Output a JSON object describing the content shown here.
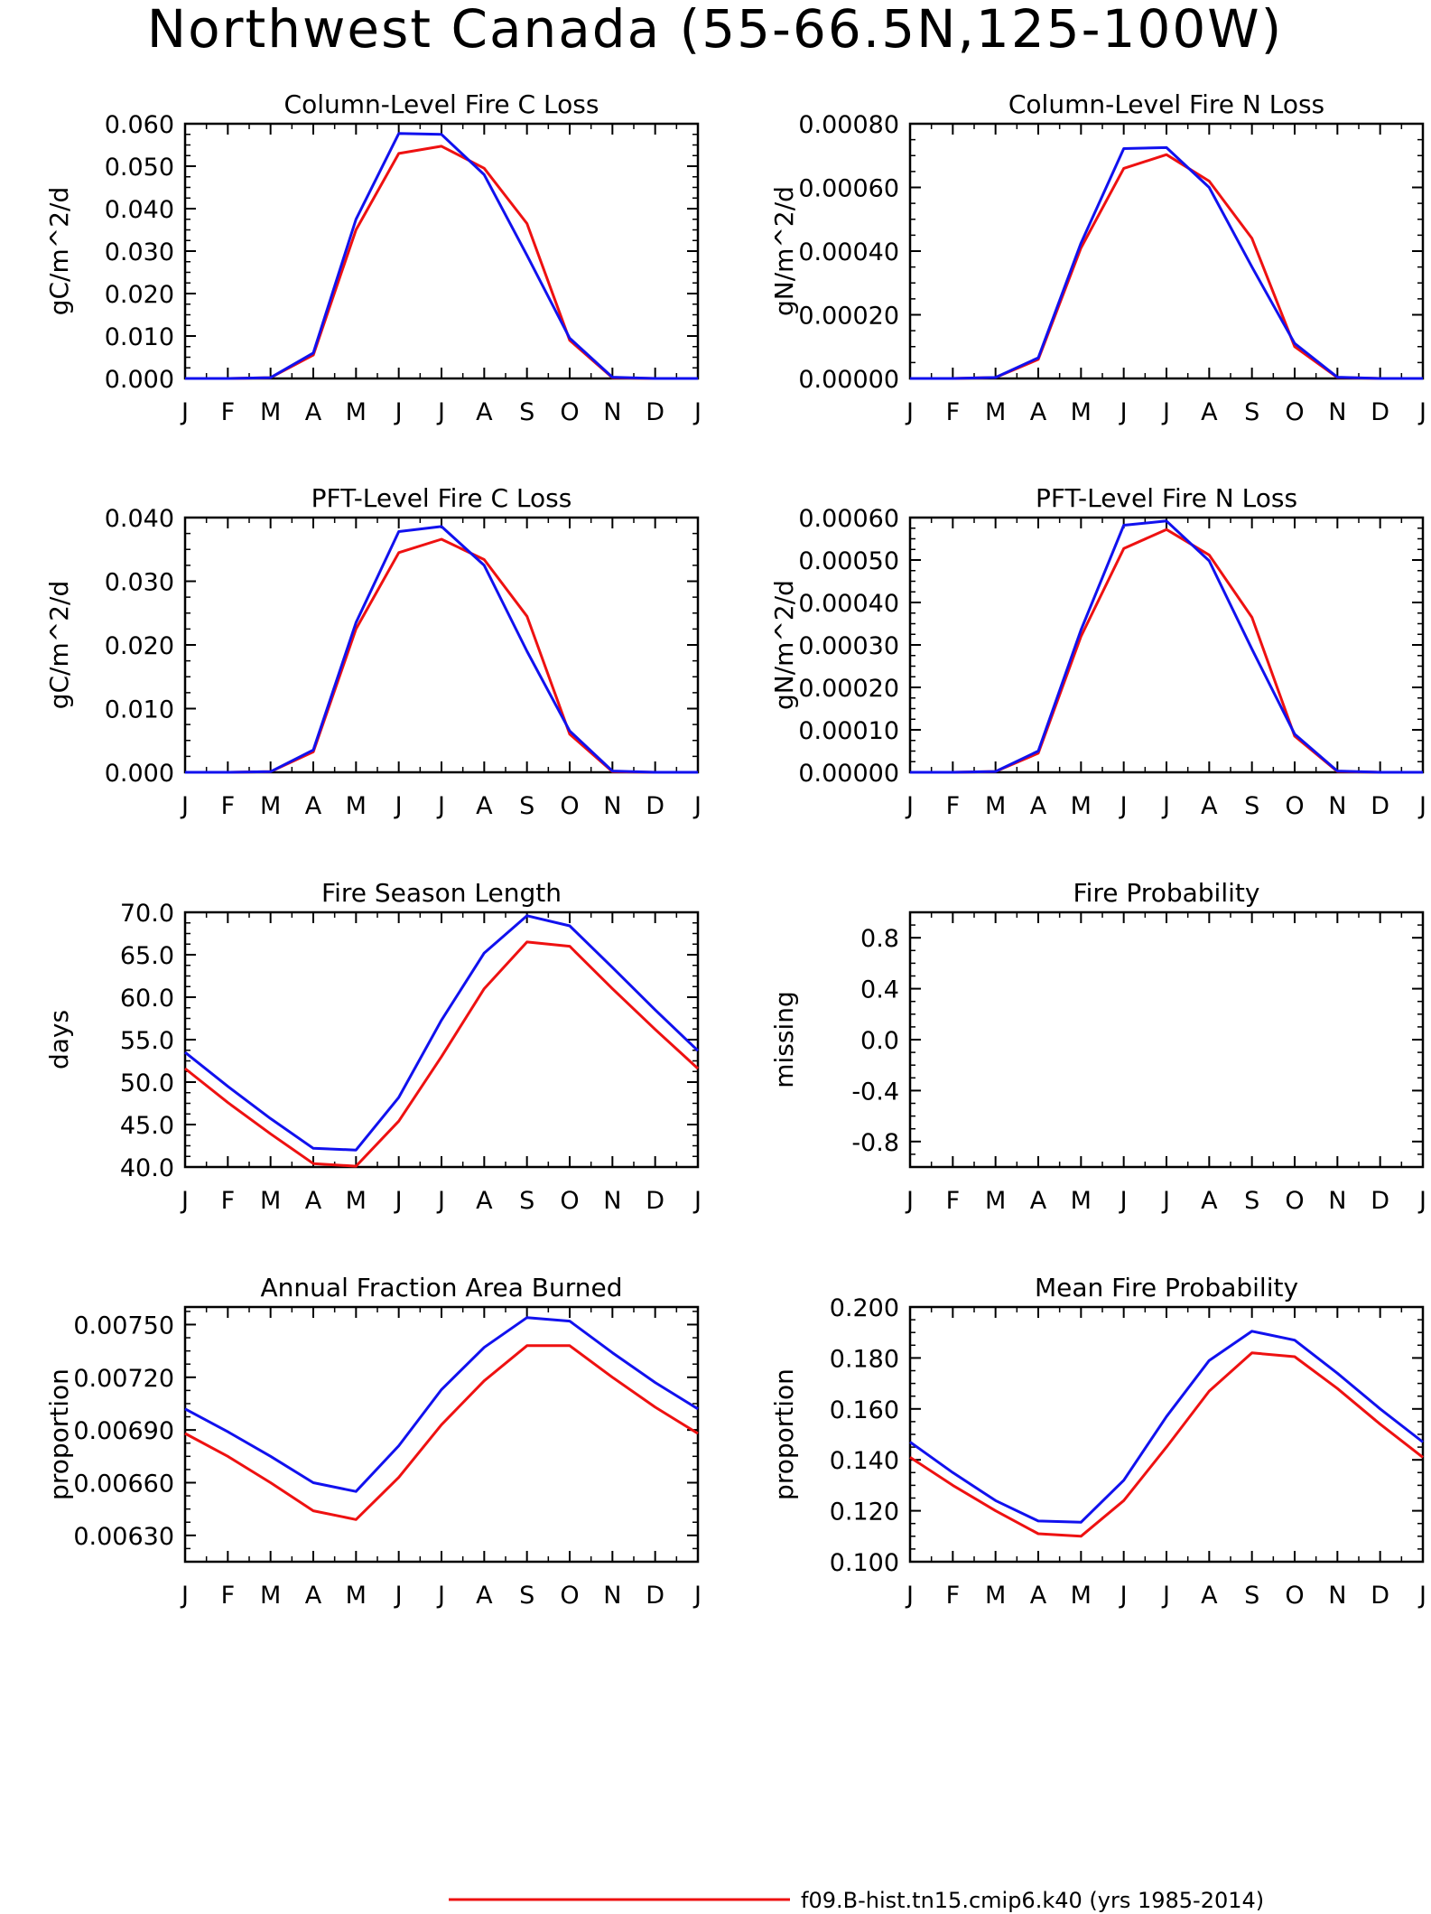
{
  "figure": {
    "title": "Northwest Canada (55-66.5N,125-100W)"
  },
  "colors": {
    "series_1": "#ee1111",
    "series_2": "#1111ee"
  },
  "legend": {
    "entries": [
      {
        "label": "f09.B-hist.tn15.cmip6.k40 (yrs 1985-2014)",
        "color": "#ee1111"
      }
    ]
  },
  "chart_data": [
    {
      "type": "line",
      "title": "Column-Level Fire C Loss",
      "ylabel": "gC/m^2/d",
      "xlabel": "",
      "categories": [
        "J",
        "F",
        "M",
        "A",
        "M",
        "J",
        "J",
        "A",
        "S",
        "O",
        "N",
        "D",
        "J"
      ],
      "ylim": [
        0,
        0.06
      ],
      "yticks": [
        "0.000",
        "0.010",
        "0.020",
        "0.030",
        "0.040",
        "0.050",
        "0.060"
      ],
      "grid": false,
      "series": [
        {
          "color": "#ee1111",
          "values": [
            0,
            0,
            0.0002,
            0.0055,
            0.035,
            0.053,
            0.0547,
            0.0495,
            0.0365,
            0.009,
            0.0002,
            0,
            0
          ]
        },
        {
          "color": "#1111ee",
          "values": [
            0,
            0,
            0.0002,
            0.006,
            0.0375,
            0.0577,
            0.0575,
            0.048,
            0.029,
            0.0095,
            0.0003,
            0,
            0
          ]
        }
      ]
    },
    {
      "type": "line",
      "title": "Column-Level Fire N Loss",
      "ylabel": "gN/m^2/d",
      "xlabel": "",
      "categories": [
        "J",
        "F",
        "M",
        "A",
        "M",
        "J",
        "J",
        "A",
        "S",
        "O",
        "N",
        "D",
        "J"
      ],
      "ylim": [
        0,
        0.0008
      ],
      "yticks": [
        "0.00000",
        "0.00020",
        "0.00040",
        "0.00060",
        "0.00080"
      ],
      "grid": false,
      "series": [
        {
          "color": "#ee1111",
          "values": [
            0,
            0,
            3e-06,
            6e-05,
            0.00041,
            0.00066,
            0.000703,
            0.00062,
            0.00044,
            0.0001,
            3e-06,
            0,
            0
          ]
        },
        {
          "color": "#1111ee",
          "values": [
            0,
            0,
            3e-06,
            6.5e-05,
            0.000425,
            0.000722,
            0.000725,
            0.0006,
            0.00035,
            0.00011,
            4e-06,
            0,
            0
          ]
        }
      ]
    },
    {
      "type": "line",
      "title": "PFT-Level Fire C Loss",
      "ylabel": "gC/m^2/d",
      "xlabel": "",
      "categories": [
        "J",
        "F",
        "M",
        "A",
        "M",
        "J",
        "J",
        "A",
        "S",
        "O",
        "N",
        "D",
        "J"
      ],
      "ylim": [
        0,
        0.04
      ],
      "yticks": [
        "0.000",
        "0.010",
        "0.020",
        "0.030",
        "0.040"
      ],
      "grid": false,
      "series": [
        {
          "color": "#ee1111",
          "values": [
            0,
            0,
            0.0001,
            0.0032,
            0.0225,
            0.0345,
            0.0366,
            0.0334,
            0.0245,
            0.006,
            0.0001,
            0,
            0
          ]
        },
        {
          "color": "#1111ee",
          "values": [
            0,
            0,
            0.0001,
            0.0035,
            0.0235,
            0.0378,
            0.0386,
            0.0325,
            0.019,
            0.0065,
            0.0002,
            0,
            0
          ]
        }
      ]
    },
    {
      "type": "line",
      "title": "PFT-Level Fire N Loss",
      "ylabel": "gN/m^2/d",
      "xlabel": "",
      "categories": [
        "J",
        "F",
        "M",
        "A",
        "M",
        "J",
        "J",
        "A",
        "S",
        "O",
        "N",
        "D",
        "J"
      ],
      "ylim": [
        0,
        0.0006
      ],
      "yticks": [
        "0.00000",
        "0.00010",
        "0.00020",
        "0.00030",
        "0.00040",
        "0.00050",
        "0.00060"
      ],
      "grid": false,
      "series": [
        {
          "color": "#ee1111",
          "values": [
            0,
            0,
            2e-06,
            4.5e-05,
            0.00032,
            0.000527,
            0.000572,
            0.000512,
            0.000365,
            8.5e-05,
            2e-06,
            0,
            0
          ]
        },
        {
          "color": "#1111ee",
          "values": [
            0,
            0,
            2e-06,
            5e-05,
            0.000335,
            0.000582,
            0.000592,
            0.000498,
            0.00029,
            9e-05,
            3e-06,
            0,
            0
          ]
        }
      ]
    },
    {
      "type": "line",
      "title": "Fire Season Length",
      "ylabel": "days",
      "xlabel": "",
      "categories": [
        "J",
        "F",
        "M",
        "A",
        "M",
        "J",
        "J",
        "A",
        "S",
        "O",
        "N",
        "D",
        "J"
      ],
      "ylim": [
        40,
        70
      ],
      "yticks": [
        "40.0",
        "45.0",
        "50.0",
        "55.0",
        "60.0",
        "65.0",
        "70.0"
      ],
      "grid": false,
      "series": [
        {
          "color": "#ee1111",
          "values": [
            51.6,
            47.6,
            43.9,
            40.4,
            40.1,
            45.4,
            53.0,
            61.0,
            66.5,
            66.0,
            61.0,
            56.2,
            51.6
          ]
        },
        {
          "color": "#1111ee",
          "values": [
            53.5,
            49.5,
            45.7,
            42.2,
            42.0,
            48.2,
            57.3,
            65.2,
            69.6,
            68.4,
            63.5,
            58.5,
            53.7
          ]
        }
      ]
    },
    {
      "type": "line",
      "title": "Fire Probability",
      "ylabel": "missing",
      "xlabel": "",
      "categories": [
        "J",
        "F",
        "M",
        "A",
        "M",
        "J",
        "J",
        "A",
        "S",
        "O",
        "N",
        "D",
        "J"
      ],
      "ylim": [
        -1,
        1
      ],
      "yticks": [
        "-0.8",
        "-0.4",
        "0.0",
        "0.4",
        "0.8"
      ],
      "grid": false,
      "series": []
    },
    {
      "type": "line",
      "title": "Annual Fraction Area Burned",
      "ylabel": "proportion",
      "xlabel": "",
      "categories": [
        "J",
        "F",
        "M",
        "A",
        "M",
        "J",
        "J",
        "A",
        "S",
        "O",
        "N",
        "D",
        "J"
      ],
      "ylim": [
        0.00615,
        0.0076
      ],
      "yticks": [
        "0.00630",
        "0.00660",
        "0.00690",
        "0.00720",
        "0.00750"
      ],
      "grid": false,
      "series": [
        {
          "color": "#ee1111",
          "values": [
            0.00688,
            0.00675,
            0.0066,
            0.00644,
            0.00639,
            0.00663,
            0.00693,
            0.00718,
            0.00738,
            0.00738,
            0.0072,
            0.00703,
            0.00688
          ]
        },
        {
          "color": "#1111ee",
          "values": [
            0.00702,
            0.00689,
            0.00675,
            0.0066,
            0.00655,
            0.00681,
            0.00713,
            0.00737,
            0.00754,
            0.00752,
            0.00734,
            0.00717,
            0.00702
          ]
        }
      ]
    },
    {
      "type": "line",
      "title": "Mean Fire Probability",
      "ylabel": "proportion",
      "xlabel": "",
      "categories": [
        "J",
        "F",
        "M",
        "A",
        "M",
        "J",
        "J",
        "A",
        "S",
        "O",
        "N",
        "D",
        "J"
      ],
      "ylim": [
        0.1,
        0.2
      ],
      "yticks": [
        "0.100",
        "0.120",
        "0.140",
        "0.160",
        "0.180",
        "0.200"
      ],
      "grid": false,
      "series": [
        {
          "color": "#ee1111",
          "values": [
            0.141,
            0.13,
            0.12,
            0.111,
            0.11,
            0.124,
            0.145,
            0.167,
            0.182,
            0.1805,
            0.168,
            0.154,
            0.141
          ]
        },
        {
          "color": "#1111ee",
          "values": [
            0.147,
            0.135,
            0.124,
            0.116,
            0.1155,
            0.132,
            0.157,
            0.179,
            0.1905,
            0.187,
            0.174,
            0.16,
            0.147
          ]
        }
      ]
    }
  ]
}
